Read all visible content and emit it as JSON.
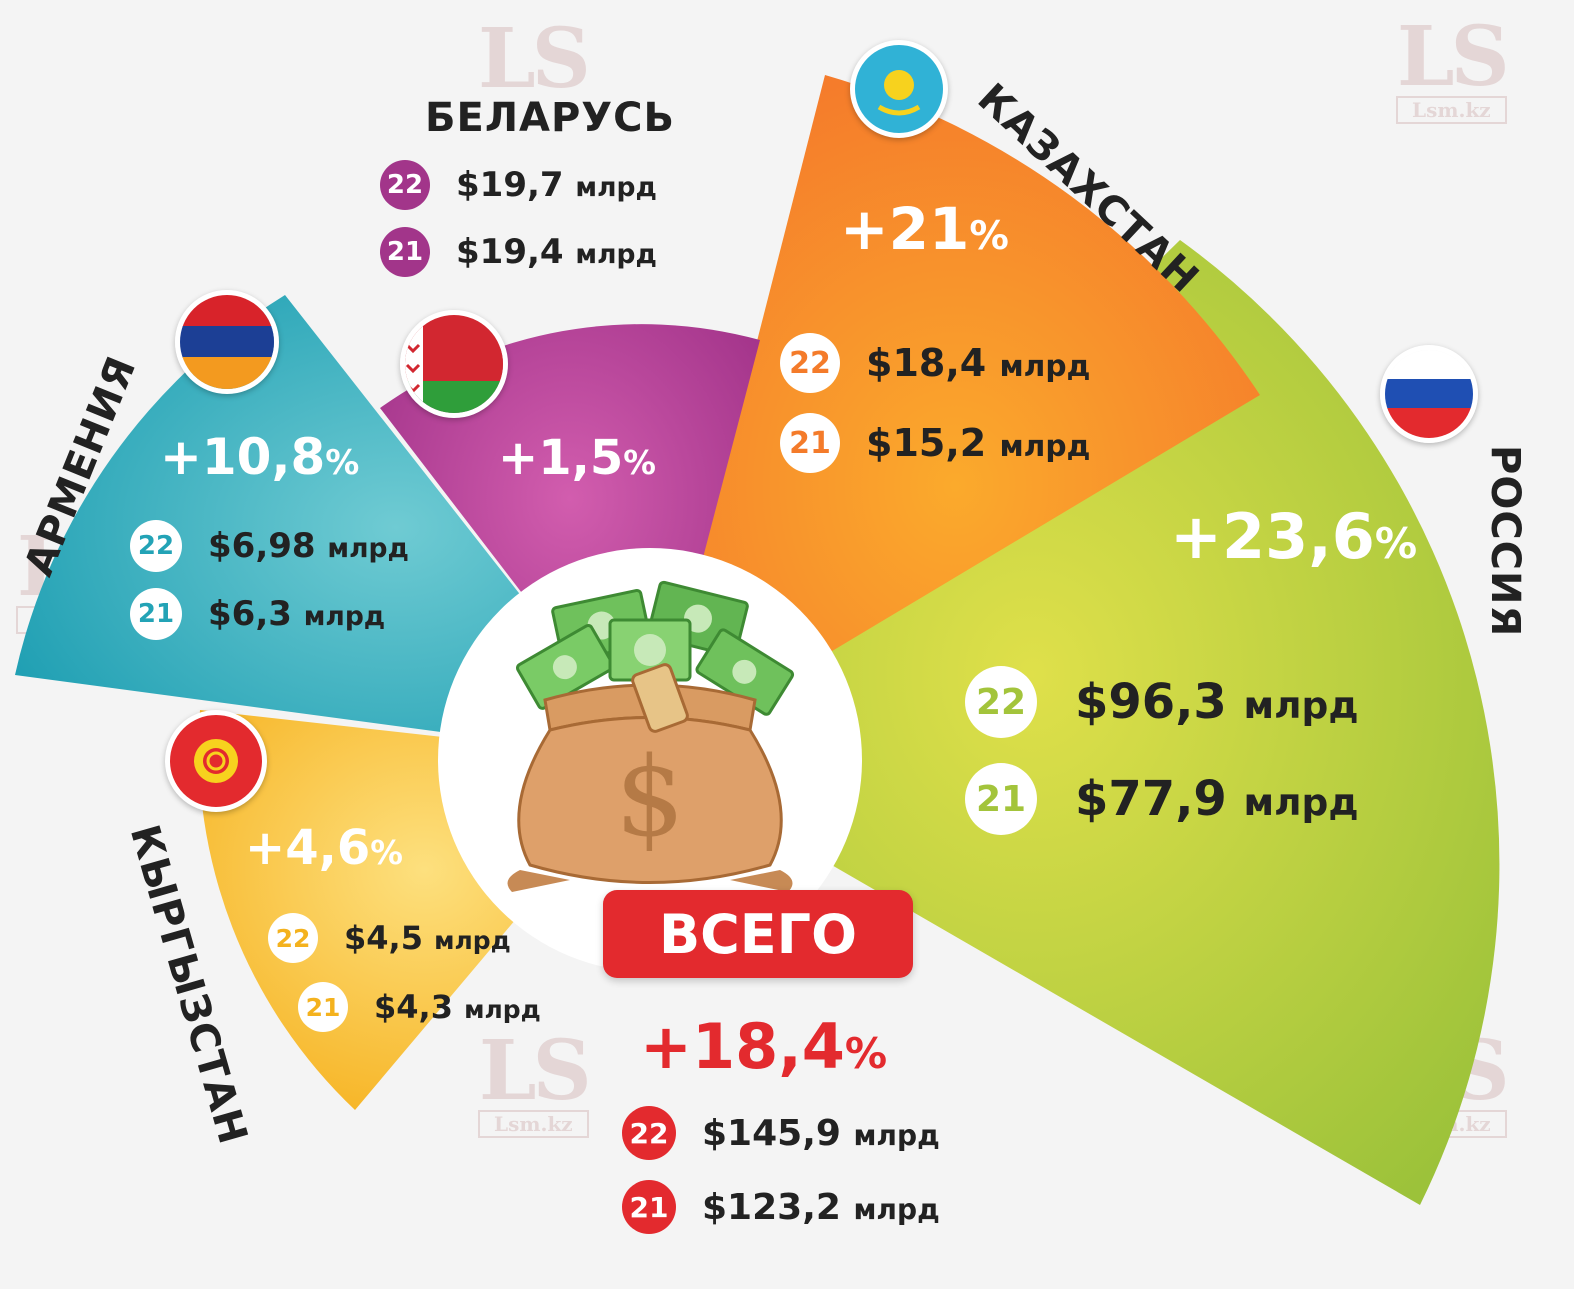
{
  "watermark": {
    "logo": "LS",
    "site": "Lsm.kz"
  },
  "chart_data": {
    "type": "pie",
    "units": "млрд",
    "year_labels": [
      "22",
      "21"
    ],
    "series": [
      {
        "name": "РОССИЯ",
        "growth": "+23,6",
        "v22": "$96,3",
        "v21": "$77,9",
        "color": "#a9c63a"
      },
      {
        "name": "КАЗАХСТАН",
        "growth": "+21",
        "v22": "$18,4",
        "v21": "$15,2",
        "color": "#f7941d"
      },
      {
        "name": "БЕЛАРУСЬ",
        "growth": "+1,5",
        "v22": "$19,7",
        "v21": "$19,4",
        "color": "#b1388d"
      },
      {
        "name": "АРМЕНИЯ",
        "growth": "+10,8",
        "v22": "$6,98",
        "v21": "$6,3",
        "color": "#27a7b8"
      },
      {
        "name": "КЫРГЫЗСТАН",
        "growth": "+4,6",
        "v22": "$4,5",
        "v21": "$4,3",
        "color": "#f9b81f"
      }
    ],
    "total": {
      "label": "ВСЕГО",
      "growth": "+18,4",
      "v22": "$145,9",
      "v21": "$123,2",
      "color": "#e32a2e"
    }
  },
  "pct_sign": "%",
  "icons": {
    "center": "money-bag-icon",
    "currency": "dollar-sign-icon"
  }
}
